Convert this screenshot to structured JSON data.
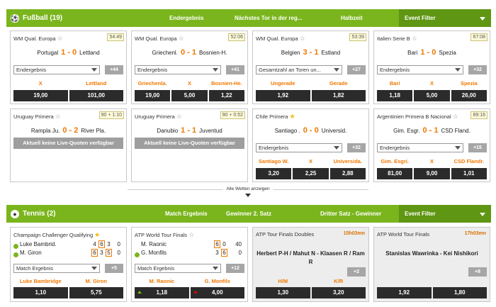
{
  "football": {
    "title": "Fußball (19)",
    "tabs": [
      "Endergebnis",
      "Nächstes Tor in der reg...",
      "Halbzeit"
    ],
    "filter": "Event Filter",
    "cards": [
      {
        "league": "WM Qual. Europa",
        "time": "54:49",
        "home": "Portugal",
        "score": "1 - 0",
        "away": "Lettland",
        "market": "Endergebnis",
        "more": "+44",
        "labels": [
          "X",
          "Lettland"
        ],
        "odds": [
          "19,00",
          "101,00"
        ]
      },
      {
        "league": "WM Qual. Europa",
        "time": "52:06",
        "home": "Griechenl.",
        "score": "0 - 1",
        "away": "Bosnien-H.",
        "market": "Endergebnis",
        "more": "+41",
        "labels": [
          "Griechenla.",
          "X",
          "Bosnien-He."
        ],
        "odds": [
          "19,00",
          "5,00",
          "1,22"
        ]
      },
      {
        "league": "WM Qual. Europa",
        "time": "53:39",
        "home": "Belgien",
        "score": "3 - 1",
        "away": "Estland",
        "market": "Gesamtzahl an Toren un...",
        "more": "+27",
        "labels": [
          "Ungerade",
          "Gerade"
        ],
        "odds": [
          "1,92",
          "1,82"
        ]
      },
      {
        "league": "Italien Serie B",
        "time": "67:08",
        "home": "Bari",
        "score": "1 - 0",
        "away": "Spezia",
        "market": "Endergebnis",
        "more": "+32",
        "labels": [
          "Bari",
          "X",
          "Spezia"
        ],
        "odds": [
          "1,18",
          "5,00",
          "26,00"
        ]
      },
      {
        "league": "Uruguay Primera",
        "time": "90 + 1:10",
        "home": "Rampla Ju.",
        "score": "0 - 2",
        "away": "River Pla.",
        "noquote": "Aktuell keine Live-Quoten verfügbar"
      },
      {
        "league": "Uruguay Primera",
        "time": "90 + 0:52",
        "home": "Danubio",
        "score": "1 - 1",
        "away": "Juventud",
        "noquote": "Aktuell keine Live-Quoten verfügbar"
      },
      {
        "league": "Chile Primera",
        "time": "",
        "home": "Santiago .",
        "score": "0 - 0",
        "away": "Universid.",
        "market": "Endergebnis",
        "more": "+32",
        "labels": [
          "Santiago W.",
          "X",
          "Universida."
        ],
        "odds": [
          "3,20",
          "2,25",
          "2,88"
        ]
      },
      {
        "league": "Argentinien Primera B Nacional",
        "time": "89:16",
        "home": "Gim. Esgr.",
        "score": "0 - 1",
        "away": "CSD Fland.",
        "market": "Endergebnis",
        "more": "+15",
        "labels": [
          "Gim. Esgri.",
          "X",
          "CSD Flandr."
        ],
        "odds": [
          "81,00",
          "9,00",
          "1,01"
        ]
      }
    ]
  },
  "all_bets": "Alle Wetten anzeigen",
  "tennis": {
    "title": "Tennis (2)",
    "tabs": [
      "Match Ergebnis",
      "Gewinner 2. Satz",
      "Dritter Satz - Gewinner"
    ],
    "filter": "Event Filter",
    "c1": {
      "league": "Champaign Challenger Qualifying",
      "p1": "Luke Bambrid.",
      "p2": "M. Giron",
      "s1": [
        "4",
        "6",
        "3",
        "0"
      ],
      "s2": [
        "6",
        "3",
        "5",
        "0"
      ],
      "market": "Match Ergebnis",
      "more": "+5",
      "labels": [
        "Luke Bambridge",
        "M. Giron"
      ],
      "odds": [
        "1,10",
        "5,75"
      ]
    },
    "c2": {
      "league": "ATP World Tour Finals",
      "p1": "M. Raonic",
      "p2": "G. Monfils",
      "s1": [
        "6",
        "0",
        "40"
      ],
      "s2": [
        "3",
        "6",
        "0"
      ],
      "market": "Match Ergebnis",
      "more": "+12",
      "labels": [
        "M. Raonic",
        "G. Monfils"
      ],
      "odds": [
        "1,18",
        "4,00"
      ]
    },
    "c3": {
      "league": "ATP Tour Finals Doubles",
      "time": "15h03mn",
      "match": "Herbert P-H / Mahut N - Klaasen R / Ram R",
      "more": "+2",
      "labels": [
        "H/M",
        "K/R"
      ],
      "odds": [
        "1,30",
        "3,20"
      ]
    },
    "c4": {
      "league": "ATP World Tour Finals",
      "time": "17h03mn",
      "match": "Stanislas Wawrinka - Kei Nishikori",
      "more": "+8",
      "labels": [],
      "odds": [
        "1,92",
        "1,80"
      ]
    }
  }
}
